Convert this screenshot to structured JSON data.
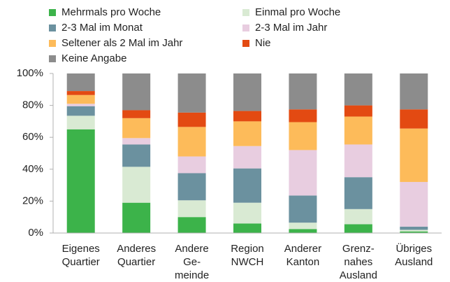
{
  "chart_data": {
    "type": "stacked_bar",
    "categories": [
      "Eigenes\nQuartier",
      "Anderes\nQuartier",
      "Andere\nGe-\nmeinde",
      "Region\nNWCH",
      "Anderer\nKanton",
      "Grenz-\nnahes\nAusland",
      "Übriges\nAusland"
    ],
    "series": [
      {
        "name": "Mehrmals pro Woche",
        "color": "#3cb34a",
        "values": [
          65,
          19,
          10,
          6,
          2.5,
          5.5,
          1
        ]
      },
      {
        "name": "Einmal pro Woche",
        "color": "#d9ead3",
        "values": [
          8.5,
          22.5,
          10.5,
          13,
          4,
          9.5,
          1
        ]
      },
      {
        "name": "2-3 Mal im Monat",
        "color": "#6b919f",
        "values": [
          6,
          14,
          17,
          21.5,
          17,
          20,
          2
        ]
      },
      {
        "name": "2-3 Mal im Jahr",
        "color": "#e8cde0",
        "values": [
          1.5,
          4,
          10.5,
          14,
          28.5,
          20.5,
          28
        ]
      },
      {
        "name": "Seltener als 2 Mal im Jahr",
        "color": "#fdbb5a",
        "values": [
          5.5,
          12.5,
          18.5,
          15.5,
          17.5,
          17.5,
          33.5
        ]
      },
      {
        "name": "Nie",
        "color": "#e34a12",
        "values": [
          2.5,
          5,
          9,
          6.5,
          8,
          7,
          12
        ]
      },
      {
        "name": "Keine Angabe",
        "color": "#8c8c8c",
        "values": [
          11,
          23,
          24.5,
          23.5,
          22.5,
          20,
          22.5
        ]
      }
    ],
    "ylim": [
      0,
      100
    ],
    "yticks": [
      {
        "value": 0,
        "label": "0%"
      },
      {
        "value": 20,
        "label": "20%"
      },
      {
        "value": 40,
        "label": "40%"
      },
      {
        "value": 60,
        "label": "60%"
      },
      {
        "value": 80,
        "label": "80%"
      },
      {
        "value": 100,
        "label": "100%"
      }
    ],
    "legend": "top"
  }
}
